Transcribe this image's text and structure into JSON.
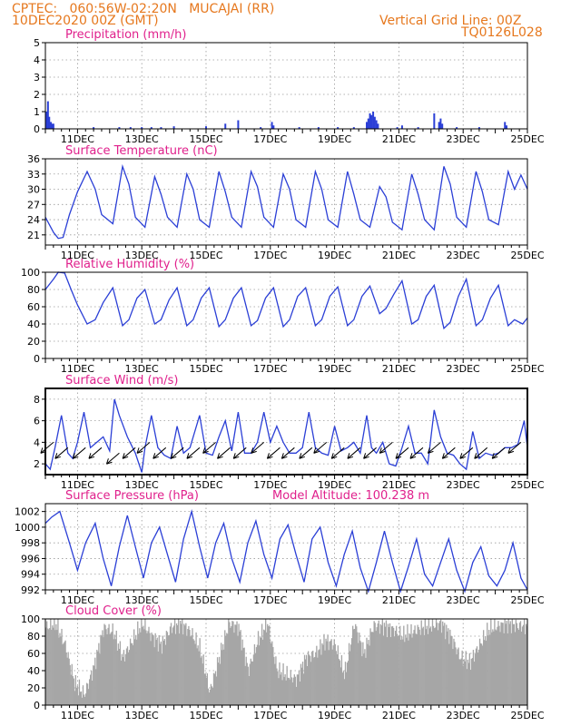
{
  "header": {
    "line1": "CPTEC:   060:56W-02:20N   MUCAJAI (RR)",
    "line2": "10DEC2020 00Z (GMT)",
    "right1": "Vertical Grid Line: 00Z",
    "right2": "TQ0126L028"
  },
  "colors": {
    "header": "#e6781e",
    "title": "#e0208c",
    "line": "#2b3fd6",
    "bar": "#2b3fd6",
    "cloud": "#a6a6a6",
    "grid": "#9a9a9a"
  },
  "x_axis": {
    "start_day": 10,
    "end_day": 25,
    "tick_labels": [
      "11DEC",
      "13DEC",
      "15DEC",
      "17DEC",
      "19DEC",
      "21DEC",
      "23DEC",
      "25DEC"
    ],
    "tick_days": [
      11,
      13,
      15,
      17,
      19,
      21,
      23,
      25
    ]
  },
  "chart_data": [
    {
      "type": "bar",
      "title": "Precipitation (mm/h)",
      "ylim": [
        0,
        5
      ],
      "yticks": [
        0,
        1,
        2,
        3,
        4,
        5
      ],
      "grid": true,
      "x_unit": "day of December 2020",
      "x": [
        10.04,
        10.08,
        10.12,
        10.17,
        10.21,
        10.25,
        11.5,
        12.3,
        12.65,
        13.0,
        13.3,
        13.6,
        14.0,
        15.0,
        15.6,
        16.0,
        16.7,
        17.05,
        17.1,
        17.9,
        18.5,
        19.1,
        19.6,
        20.0,
        20.05,
        20.1,
        20.15,
        20.2,
        20.25,
        20.3,
        20.35,
        20.95,
        21.1,
        21.6,
        22.1,
        22.25,
        22.3,
        22.35,
        22.8,
        23.5,
        24.3,
        24.35
      ],
      "values": [
        1.0,
        1.6,
        0.7,
        0.4,
        0.3,
        0.3,
        0.1,
        0.1,
        0.1,
        0.1,
        0.1,
        0.1,
        0.15,
        0.15,
        0.3,
        0.5,
        0.1,
        0.4,
        0.2,
        0.1,
        0.1,
        0.1,
        0.1,
        0.4,
        0.6,
        0.9,
        0.8,
        1.0,
        0.7,
        0.5,
        0.3,
        0.1,
        0.2,
        0.1,
        0.9,
        0.4,
        0.6,
        0.3,
        0.1,
        0.1,
        0.4,
        0.2
      ]
    },
    {
      "type": "line",
      "title": "Surface Temperature (nC)",
      "ylim": [
        19,
        36
      ],
      "yticks": [
        21,
        24,
        27,
        30,
        33,
        36
      ],
      "grid": true,
      "x": [
        10.0,
        10.25,
        10.4,
        10.55,
        10.75,
        11.0,
        11.3,
        11.55,
        11.75,
        12.1,
        12.4,
        12.6,
        12.8,
        13.1,
        13.4,
        13.6,
        13.8,
        14.1,
        14.4,
        14.6,
        14.8,
        15.1,
        15.4,
        15.6,
        15.8,
        16.1,
        16.4,
        16.6,
        16.8,
        17.1,
        17.4,
        17.6,
        17.8,
        18.1,
        18.4,
        18.6,
        18.8,
        19.1,
        19.4,
        19.6,
        19.8,
        20.1,
        20.4,
        20.6,
        20.8,
        21.1,
        21.4,
        21.6,
        21.8,
        22.1,
        22.4,
        22.6,
        22.8,
        23.1,
        23.4,
        23.6,
        23.8,
        24.1,
        24.4,
        24.6,
        24.8,
        25.0
      ],
      "values": [
        24.5,
        21.5,
        20.3,
        20.5,
        25.0,
        29.5,
        33.5,
        30.0,
        25.0,
        23.2,
        34.5,
        31.0,
        24.5,
        22.5,
        32.5,
        29.0,
        24.5,
        22.5,
        33.0,
        30.0,
        24.0,
        22.5,
        33.5,
        29.5,
        24.5,
        22.5,
        33.5,
        30.5,
        24.5,
        22.5,
        33.0,
        30.0,
        24.0,
        22.5,
        33.5,
        30.0,
        24.0,
        22.5,
        33.5,
        29.0,
        24.0,
        22.5,
        30.5,
        28.5,
        23.5,
        22.0,
        33.0,
        29.0,
        24.0,
        22.0,
        34.5,
        31.0,
        24.5,
        22.5,
        33.5,
        29.5,
        24.0,
        23.0,
        33.5,
        30.0,
        32.8,
        30.0
      ]
    },
    {
      "type": "line",
      "title": "Relative Humidity (%)",
      "ylim": [
        0,
        100
      ],
      "yticks": [
        0,
        20,
        40,
        60,
        80,
        100
      ],
      "grid": true,
      "x": [
        10.0,
        10.25,
        10.4,
        10.6,
        10.8,
        11.0,
        11.3,
        11.55,
        11.8,
        12.1,
        12.4,
        12.6,
        12.85,
        13.1,
        13.4,
        13.6,
        13.85,
        14.1,
        14.4,
        14.6,
        14.85,
        15.1,
        15.4,
        15.6,
        15.85,
        16.1,
        16.4,
        16.6,
        16.85,
        17.1,
        17.4,
        17.6,
        17.85,
        18.1,
        18.4,
        18.6,
        18.85,
        19.1,
        19.4,
        19.6,
        19.85,
        20.1,
        20.4,
        20.6,
        20.85,
        21.1,
        21.4,
        21.6,
        21.85,
        22.1,
        22.4,
        22.6,
        22.85,
        23.1,
        23.4,
        23.6,
        23.85,
        24.1,
        24.4,
        24.6,
        24.85,
        25.0
      ],
      "values": [
        80,
        92,
        100,
        99,
        80,
        62,
        40,
        45,
        65,
        82,
        38,
        45,
        70,
        80,
        40,
        45,
        68,
        82,
        38,
        45,
        70,
        82,
        37,
        45,
        70,
        82,
        38,
        44,
        70,
        82,
        37,
        45,
        72,
        82,
        38,
        45,
        72,
        83,
        38,
        45,
        72,
        84,
        52,
        58,
        75,
        90,
        40,
        45,
        72,
        85,
        35,
        42,
        72,
        92,
        38,
        45,
        70,
        85,
        38,
        45,
        40,
        47
      ]
    },
    {
      "type": "line",
      "title": "Surface Wind (m/s)",
      "ylim": [
        1,
        9
      ],
      "yticks": [
        2,
        4,
        6,
        8
      ],
      "grid": true,
      "x": [
        10.0,
        10.15,
        10.3,
        10.5,
        10.7,
        10.85,
        11.0,
        11.2,
        11.4,
        11.6,
        11.8,
        12.0,
        12.15,
        12.3,
        12.55,
        12.8,
        13.0,
        13.1,
        13.3,
        13.5,
        13.7,
        13.9,
        14.1,
        14.3,
        14.5,
        14.8,
        15.0,
        15.2,
        15.4,
        15.6,
        15.8,
        16.0,
        16.2,
        16.4,
        16.6,
        16.8,
        17.0,
        17.2,
        17.4,
        17.6,
        17.8,
        18.0,
        18.2,
        18.4,
        18.6,
        18.8,
        19.0,
        19.2,
        19.4,
        19.6,
        19.8,
        20.0,
        20.15,
        20.3,
        20.5,
        20.7,
        20.9,
        21.1,
        21.3,
        21.5,
        21.7,
        21.9,
        22.1,
        22.3,
        22.5,
        22.7,
        22.9,
        23.1,
        23.3,
        23.5,
        23.7,
        23.9,
        24.1,
        24.3,
        24.5,
        24.7,
        24.9,
        25.0
      ],
      "values": [
        2.0,
        1.5,
        3.5,
        6.5,
        3.0,
        2.5,
        4.0,
        6.8,
        3.5,
        4.0,
        4.5,
        3.2,
        8.0,
        6.5,
        4.5,
        3.0,
        1.2,
        3.5,
        6.5,
        3.5,
        2.8,
        2.5,
        5.5,
        3.0,
        3.5,
        6.5,
        3.0,
        2.8,
        4.5,
        6.0,
        3.2,
        6.8,
        3.0,
        3.0,
        4.0,
        6.8,
        4.0,
        5.5,
        4.0,
        3.0,
        3.0,
        3.5,
        6.8,
        3.5,
        3.0,
        2.8,
        5.5,
        3.2,
        3.5,
        4.0,
        3.0,
        6.5,
        3.5,
        3.0,
        4.0,
        2.0,
        1.8,
        3.5,
        5.5,
        3.0,
        3.0,
        2.0,
        7.0,
        4.5,
        3.0,
        2.8,
        2.0,
        1.5,
        5.0,
        2.5,
        3.0,
        2.8,
        3.0,
        3.5,
        3.5,
        3.8,
        6.0,
        3.5
      ],
      "arrows_days": [
        10.25,
        10.7,
        11.25,
        11.75,
        12.3,
        12.8,
        13.25,
        13.75,
        14.3,
        14.8,
        15.3,
        15.75,
        16.25,
        16.8,
        17.3,
        17.75,
        18.3,
        18.75,
        19.3,
        19.8,
        20.3,
        20.8,
        21.3,
        21.75,
        22.3,
        22.75,
        23.3,
        23.75,
        24.3,
        24.8
      ],
      "arrows_speed": [
        4.0,
        3.5,
        3.5,
        3.5,
        3.0,
        3.5,
        4.0,
        3.5,
        3.5,
        3.5,
        4.0,
        3.5,
        3.5,
        4.0,
        3.5,
        3.5,
        3.5,
        4.0,
        3.5,
        3.5,
        3.5,
        4.0,
        3.5,
        3.5,
        4.0,
        3.5,
        3.5,
        3.5,
        3.5,
        4.0
      ]
    },
    {
      "type": "line",
      "title": "Surface Pressure (hPa)",
      "annotation": "Model Altitude: 100.238 m",
      "ylim": [
        992,
        1003
      ],
      "yticks": [
        992,
        994,
        996,
        998,
        1000,
        1002
      ],
      "grid": true,
      "x": [
        10.0,
        10.2,
        10.45,
        10.75,
        11.0,
        11.25,
        11.55,
        11.8,
        12.05,
        12.3,
        12.55,
        12.8,
        13.05,
        13.3,
        13.55,
        13.8,
        14.05,
        14.3,
        14.55,
        14.8,
        15.05,
        15.3,
        15.55,
        15.8,
        16.05,
        16.3,
        16.55,
        16.8,
        17.05,
        17.3,
        17.55,
        17.8,
        18.05,
        18.3,
        18.55,
        18.8,
        19.05,
        19.3,
        19.55,
        19.8,
        20.05,
        20.3,
        20.55,
        20.8,
        21.05,
        21.3,
        21.55,
        21.8,
        22.05,
        22.3,
        22.55,
        22.8,
        23.05,
        23.3,
        23.55,
        23.8,
        24.05,
        24.3,
        24.55,
        24.8,
        25.0
      ],
      "values": [
        1000.5,
        1001.3,
        1002.0,
        998.0,
        994.5,
        998.0,
        1000.5,
        996.0,
        992.5,
        997.5,
        1001.5,
        997.5,
        993.5,
        998.0,
        1000.0,
        996.5,
        993.0,
        998.5,
        1002.0,
        997.5,
        993.5,
        998.0,
        1000.5,
        996.0,
        993.0,
        998.0,
        1000.8,
        996.5,
        993.5,
        998.5,
        1000.3,
        996.5,
        993.0,
        998.5,
        1000.0,
        995.5,
        992.5,
        996.5,
        999.5,
        994.8,
        991.8,
        995.5,
        999.5,
        995.5,
        991.8,
        995.0,
        998.5,
        994.0,
        992.5,
        995.5,
        998.5,
        994.5,
        991.8,
        995.5,
        997.5,
        993.8,
        992.5,
        994.5,
        998.0,
        993.5,
        992.0
      ]
    },
    {
      "type": "area",
      "title": "Cloud Cover (%)",
      "ylim": [
        0,
        100
      ],
      "yticks": [
        0,
        20,
        40,
        60,
        80,
        100
      ],
      "grid": true,
      "x": [
        10.0,
        10.3,
        10.6,
        10.9,
        11.2,
        11.5,
        11.8,
        12.1,
        12.4,
        12.7,
        13.0,
        13.3,
        13.6,
        13.9,
        14.2,
        14.5,
        14.8,
        15.1,
        15.4,
        15.7,
        16.0,
        16.3,
        16.6,
        16.9,
        17.2,
        17.5,
        17.8,
        18.1,
        18.4,
        18.7,
        19.0,
        19.3,
        19.6,
        19.9,
        20.2,
        20.5,
        20.8,
        21.1,
        21.4,
        21.7,
        22.0,
        22.3,
        22.6,
        22.9,
        23.2,
        23.5,
        23.8,
        24.1,
        24.4,
        24.7,
        25.0
      ],
      "values": [
        90,
        95,
        70,
        25,
        12,
        45,
        90,
        85,
        55,
        75,
        95,
        80,
        70,
        90,
        95,
        85,
        65,
        15,
        55,
        95,
        90,
        40,
        75,
        95,
        40,
        35,
        30,
        55,
        60,
        75,
        70,
        35,
        95,
        60,
        92,
        92,
        88,
        80,
        85,
        90,
        92,
        95,
        80,
        55,
        50,
        70,
        88,
        92,
        95,
        92,
        92
      ]
    }
  ]
}
